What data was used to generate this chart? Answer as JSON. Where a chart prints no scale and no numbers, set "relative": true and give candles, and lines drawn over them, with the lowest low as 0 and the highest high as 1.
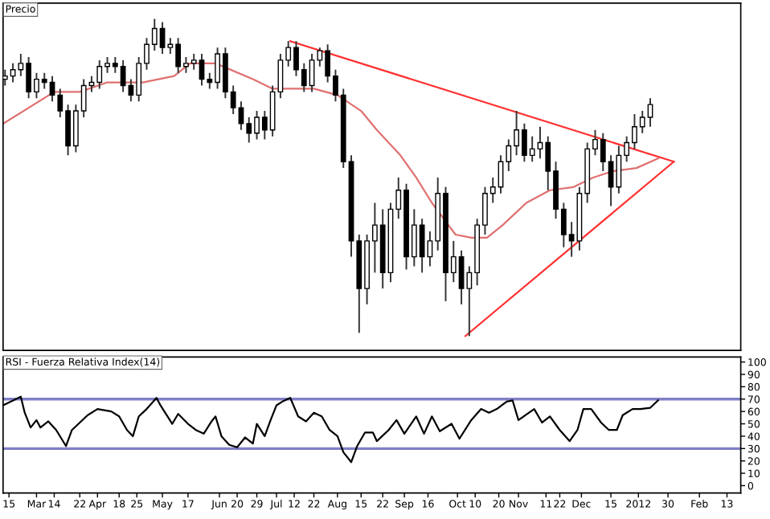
{
  "chart_data": [
    {
      "type": "candlestick",
      "title": "Precio",
      "relative": true,
      "grid": false,
      "legend": false,
      "xlim": [
        "2011-02-12",
        "2012-02-22"
      ],
      "x": [
        "2011-02-13",
        "2011-02-17",
        "2011-02-21",
        "2011-02-25",
        "2011-03-01",
        "2011-03-05",
        "2011-03-09",
        "2011-03-13",
        "2011-03-17",
        "2011-03-21",
        "2011-03-25",
        "2011-03-29",
        "2011-04-02",
        "2011-04-06",
        "2011-04-10",
        "2011-04-14",
        "2011-04-18",
        "2011-04-22",
        "2011-04-26",
        "2011-04-30",
        "2011-05-04",
        "2011-05-08",
        "2011-05-12",
        "2011-05-16",
        "2011-05-20",
        "2011-05-24",
        "2011-05-28",
        "2011-06-01",
        "2011-06-05",
        "2011-06-09",
        "2011-06-13",
        "2011-06-17",
        "2011-06-21",
        "2011-06-25",
        "2011-06-29",
        "2011-07-03",
        "2011-07-07",
        "2011-07-11",
        "2011-07-15",
        "2011-07-19",
        "2011-07-23",
        "2011-07-27",
        "2011-07-31",
        "2011-08-04",
        "2011-08-08",
        "2011-08-12",
        "2011-08-16",
        "2011-08-20",
        "2011-08-24",
        "2011-08-28",
        "2011-09-01",
        "2011-09-05",
        "2011-09-09",
        "2011-09-13",
        "2011-09-17",
        "2011-09-21",
        "2011-09-25",
        "2011-09-29",
        "2011-10-03",
        "2011-10-07",
        "2011-10-11",
        "2011-10-15",
        "2011-10-19",
        "2011-10-23",
        "2011-10-27",
        "2011-10-31",
        "2011-11-04",
        "2011-11-08",
        "2011-11-12",
        "2011-11-16",
        "2011-11-20",
        "2011-11-24",
        "2011-11-28",
        "2011-12-02",
        "2011-12-06",
        "2011-12-10",
        "2011-12-14",
        "2011-12-18",
        "2011-12-22",
        "2011-12-26",
        "2011-12-30",
        "2012-01-03",
        "2012-01-07"
      ],
      "ohlc": [
        [
          0.81,
          0.84,
          0.79,
          0.82
        ],
        [
          0.82,
          0.86,
          0.8,
          0.84
        ],
        [
          0.84,
          0.89,
          0.82,
          0.86
        ],
        [
          0.86,
          0.88,
          0.75,
          0.77
        ],
        [
          0.77,
          0.83,
          0.75,
          0.81
        ],
        [
          0.81,
          0.83,
          0.78,
          0.8
        ],
        [
          0.8,
          0.82,
          0.74,
          0.76
        ],
        [
          0.76,
          0.78,
          0.69,
          0.71
        ],
        [
          0.71,
          0.73,
          0.57,
          0.6
        ],
        [
          0.6,
          0.73,
          0.58,
          0.71
        ],
        [
          0.71,
          0.81,
          0.69,
          0.79
        ],
        [
          0.79,
          0.82,
          0.77,
          0.8
        ],
        [
          0.8,
          0.87,
          0.78,
          0.85
        ],
        [
          0.85,
          0.88,
          0.83,
          0.86
        ],
        [
          0.86,
          0.88,
          0.83,
          0.85
        ],
        [
          0.85,
          0.87,
          0.77,
          0.79
        ],
        [
          0.79,
          0.81,
          0.74,
          0.76
        ],
        [
          0.76,
          0.88,
          0.74,
          0.86
        ],
        [
          0.86,
          0.94,
          0.84,
          0.92
        ],
        [
          0.92,
          1.0,
          0.9,
          0.97
        ],
        [
          0.97,
          0.99,
          0.89,
          0.91
        ],
        [
          0.91,
          0.94,
          0.89,
          0.92
        ],
        [
          0.92,
          0.94,
          0.83,
          0.85
        ],
        [
          0.85,
          0.88,
          0.83,
          0.86
        ],
        [
          0.86,
          0.89,
          0.84,
          0.87
        ],
        [
          0.87,
          0.89,
          0.79,
          0.81
        ],
        [
          0.81,
          0.83,
          0.78,
          0.8
        ],
        [
          0.8,
          0.91,
          0.78,
          0.89
        ],
        [
          0.89,
          0.91,
          0.75,
          0.77
        ],
        [
          0.77,
          0.79,
          0.7,
          0.72
        ],
        [
          0.72,
          0.74,
          0.65,
          0.67
        ],
        [
          0.67,
          0.69,
          0.61,
          0.64
        ],
        [
          0.64,
          0.71,
          0.62,
          0.69
        ],
        [
          0.69,
          0.71,
          0.62,
          0.65
        ],
        [
          0.65,
          0.79,
          0.63,
          0.77
        ],
        [
          0.77,
          0.89,
          0.75,
          0.87
        ],
        [
          0.87,
          0.93,
          0.85,
          0.91
        ],
        [
          0.91,
          0.93,
          0.82,
          0.84
        ],
        [
          0.84,
          0.86,
          0.77,
          0.79
        ],
        [
          0.79,
          0.89,
          0.77,
          0.87
        ],
        [
          0.87,
          0.91,
          0.85,
          0.9
        ],
        [
          0.9,
          0.92,
          0.8,
          0.82
        ],
        [
          0.82,
          0.84,
          0.74,
          0.76
        ],
        [
          0.76,
          0.78,
          0.53,
          0.55
        ],
        [
          0.55,
          0.57,
          0.25,
          0.3
        ],
        [
          0.3,
          0.32,
          0.01,
          0.15
        ],
        [
          0.15,
          0.32,
          0.1,
          0.3
        ],
        [
          0.3,
          0.42,
          0.2,
          0.35
        ],
        [
          0.35,
          0.4,
          0.15,
          0.2
        ],
        [
          0.2,
          0.42,
          0.17,
          0.4
        ],
        [
          0.4,
          0.5,
          0.37,
          0.46
        ],
        [
          0.46,
          0.48,
          0.21,
          0.25
        ],
        [
          0.25,
          0.4,
          0.22,
          0.35
        ],
        [
          0.35,
          0.37,
          0.2,
          0.25
        ],
        [
          0.25,
          0.33,
          0.22,
          0.3
        ],
        [
          0.3,
          0.5,
          0.27,
          0.45
        ],
        [
          0.45,
          0.47,
          0.11,
          0.2
        ],
        [
          0.2,
          0.3,
          0.17,
          0.25
        ],
        [
          0.25,
          0.27,
          0.1,
          0.15
        ],
        [
          0.15,
          0.22,
          0,
          0.2
        ],
        [
          0.2,
          0.37,
          0.16,
          0.35
        ],
        [
          0.35,
          0.47,
          0.32,
          0.45
        ],
        [
          0.45,
          0.5,
          0.42,
          0.47
        ],
        [
          0.47,
          0.57,
          0.45,
          0.55
        ],
        [
          0.55,
          0.62,
          0.52,
          0.6
        ],
        [
          0.6,
          0.71,
          0.57,
          0.65
        ],
        [
          0.65,
          0.67,
          0.55,
          0.57
        ],
        [
          0.57,
          0.63,
          0.55,
          0.59
        ],
        [
          0.59,
          0.66,
          0.56,
          0.61
        ],
        [
          0.61,
          0.63,
          0.46,
          0.52
        ],
        [
          0.52,
          0.55,
          0.37,
          0.4
        ],
        [
          0.4,
          0.42,
          0.28,
          0.32
        ],
        [
          0.32,
          0.36,
          0.25,
          0.3
        ],
        [
          0.3,
          0.47,
          0.27,
          0.45
        ],
        [
          0.45,
          0.61,
          0.42,
          0.59
        ],
        [
          0.59,
          0.65,
          0.57,
          0.62
        ],
        [
          0.62,
          0.64,
          0.52,
          0.55
        ],
        [
          0.55,
          0.57,
          0.41,
          0.47
        ],
        [
          0.47,
          0.6,
          0.45,
          0.57
        ],
        [
          0.57,
          0.63,
          0.55,
          0.61
        ],
        [
          0.61,
          0.7,
          0.59,
          0.66
        ],
        [
          0.66,
          0.71,
          0.64,
          0.69
        ],
        [
          0.69,
          0.75,
          0.66,
          0.73
        ]
      ],
      "series": [
        {
          "type": "line",
          "color": "#e07070",
          "x": [
            "2011-02-12",
            "2011-03-10",
            "2011-03-23",
            "2011-04-06",
            "2011-04-24",
            "2011-05-10",
            "2011-05-18",
            "2011-05-31",
            "2011-06-19",
            "2011-06-29",
            "2011-07-20",
            "2011-08-01",
            "2011-08-13",
            "2011-08-21",
            "2011-09-02",
            "2011-09-10",
            "2011-09-18",
            "2011-09-30",
            "2011-10-08",
            "2011-10-16",
            "2011-10-24",
            "2011-11-05",
            "2011-11-17",
            "2011-11-29",
            "2011-12-09",
            "2011-12-19",
            "2011-12-31",
            "2012-01-11"
          ],
          "values": [
            0.67,
            0.77,
            0.77,
            0.8,
            0.8,
            0.82,
            0.86,
            0.86,
            0.81,
            0.78,
            0.78,
            0.76,
            0.71,
            0.65,
            0.57,
            0.5,
            0.42,
            0.32,
            0.31,
            0.31,
            0.35,
            0.42,
            0.46,
            0.47,
            0.5,
            0.52,
            0.53,
            0.56
          ]
        },
        {
          "type": "line",
          "color": "#ff3030",
          "x": [
            "2011-07-08",
            "2012-01-19"
          ],
          "values": [
            0.93,
            0.55
          ]
        },
        {
          "type": "line",
          "color": "#ff3030",
          "x": [
            "2011-10-05",
            "2012-01-19"
          ],
          "values": [
            0,
            0.55
          ]
        }
      ]
    },
    {
      "type": "line",
      "title": "RSI - Fuerza Relativa Index(14)",
      "grid": false,
      "legend": false,
      "color": "#000000",
      "xlim": [
        "2011-02-12",
        "2012-02-22"
      ],
      "ylim": [
        -6,
        104
      ],
      "yticks": [
        0,
        10,
        20,
        30,
        40,
        50,
        60,
        70,
        80,
        90,
        100
      ],
      "xticks": [
        {
          "value": "2011-02-15",
          "label": "15"
        },
        {
          "value": "2011-03-01",
          "label": "Mar"
        },
        {
          "value": "2011-03-10",
          "label": "14"
        },
        {
          "value": "2011-03-23",
          "label": "22"
        },
        {
          "value": "2011-04-01",
          "label": "Apr"
        },
        {
          "value": "2011-04-12",
          "label": "18"
        },
        {
          "value": "2011-04-21",
          "label": "25"
        },
        {
          "value": "2011-05-04",
          "label": "May"
        },
        {
          "value": "2011-05-17",
          "label": "17"
        },
        {
          "value": "2011-06-02",
          "label": "Jun"
        },
        {
          "value": "2011-06-11",
          "label": "20"
        },
        {
          "value": "2011-06-21",
          "label": "29"
        },
        {
          "value": "2011-07-01",
          "label": "Jul"
        },
        {
          "value": "2011-07-10",
          "label": "12"
        },
        {
          "value": "2011-07-20",
          "label": "22"
        },
        {
          "value": "2011-08-01",
          "label": "Aug"
        },
        {
          "value": "2011-08-13",
          "label": "15"
        },
        {
          "value": "2011-08-24",
          "label": "22"
        },
        {
          "value": "2011-09-04",
          "label": "Sep"
        },
        {
          "value": "2011-09-16",
          "label": "16"
        },
        {
          "value": "2011-10-01",
          "label": "Oct"
        },
        {
          "value": "2011-10-10",
          "label": "10"
        },
        {
          "value": "2011-10-22",
          "label": "20"
        },
        {
          "value": "2011-11-01",
          "label": "Nov"
        },
        {
          "value": "2011-11-15",
          "label": "11"
        },
        {
          "value": "2011-11-22",
          "label": "22"
        },
        {
          "value": "2011-12-03",
          "label": "Dec"
        },
        {
          "value": "2011-12-18",
          "label": "15"
        },
        {
          "value": "2012-01-01",
          "label": "2012"
        },
        {
          "value": "2012-01-16",
          "label": "30"
        },
        {
          "value": "2012-02-01",
          "label": "Feb"
        },
        {
          "value": "2012-02-15",
          "label": "13"
        }
      ],
      "ref_lines": [
        {
          "axis": "y",
          "value": 70,
          "color": "#8080c8"
        },
        {
          "axis": "y",
          "value": 30,
          "color": "#8080c8"
        }
      ],
      "x": [
        "2011-02-12",
        "2011-02-16",
        "2011-02-21",
        "2011-02-23",
        "2011-02-26",
        "2011-03-01",
        "2011-03-03",
        "2011-03-07",
        "2011-03-11",
        "2011-03-16",
        "2011-03-19",
        "2011-03-23",
        "2011-03-27",
        "2011-04-01",
        "2011-04-08",
        "2011-04-12",
        "2011-04-16",
        "2011-04-19",
        "2011-04-22",
        "2011-04-26",
        "2011-05-01",
        "2011-05-03",
        "2011-05-07",
        "2011-05-09",
        "2011-05-12",
        "2011-05-17",
        "2011-05-21",
        "2011-05-25",
        "2011-05-29",
        "2011-05-31",
        "2011-06-03",
        "2011-06-07",
        "2011-06-11",
        "2011-06-15",
        "2011-06-19",
        "2011-06-21",
        "2011-06-25",
        "2011-06-28",
        "2011-07-01",
        "2011-07-04",
        "2011-07-08",
        "2011-07-12",
        "2011-07-16",
        "2011-07-20",
        "2011-07-24",
        "2011-07-28",
        "2011-08-01",
        "2011-08-04",
        "2011-08-08",
        "2011-08-11",
        "2011-08-15",
        "2011-08-19",
        "2011-08-21",
        "2011-08-27",
        "2011-08-31",
        "2011-09-04",
        "2011-09-10",
        "2011-09-14",
        "2011-09-18",
        "2011-09-22",
        "2011-09-28",
        "2011-10-02",
        "2011-10-08",
        "2011-10-13",
        "2011-10-17",
        "2011-10-21",
        "2011-10-26",
        "2011-10-29",
        "2011-11-01",
        "2011-11-09",
        "2011-11-13",
        "2011-11-17",
        "2011-11-22",
        "2011-11-27",
        "2011-12-01",
        "2011-12-04",
        "2011-12-08",
        "2011-12-13",
        "2011-12-17",
        "2011-12-21",
        "2011-12-24",
        "2011-12-29",
        "2012-01-02",
        "2012-01-07",
        "2012-01-11"
      ],
      "values": [
        65,
        68,
        72,
        59,
        47,
        53,
        47,
        52,
        45,
        32,
        45,
        51,
        57,
        62,
        60,
        56,
        45,
        40,
        56,
        62,
        71,
        65,
        55,
        50,
        58,
        50,
        45,
        42,
        52,
        56,
        40,
        33,
        31,
        39,
        34,
        50,
        40,
        53,
        65,
        68,
        71,
        56,
        52,
        59,
        56,
        45,
        40,
        27,
        19,
        32,
        43,
        43,
        36,
        45,
        53,
        42,
        56,
        42,
        56,
        44,
        50,
        38,
        53,
        62,
        59,
        62,
        68,
        69,
        53,
        62,
        51,
        56,
        45,
        36,
        45,
        62,
        62,
        51,
        45,
        45,
        57,
        62,
        62,
        63,
        69
      ]
    }
  ]
}
